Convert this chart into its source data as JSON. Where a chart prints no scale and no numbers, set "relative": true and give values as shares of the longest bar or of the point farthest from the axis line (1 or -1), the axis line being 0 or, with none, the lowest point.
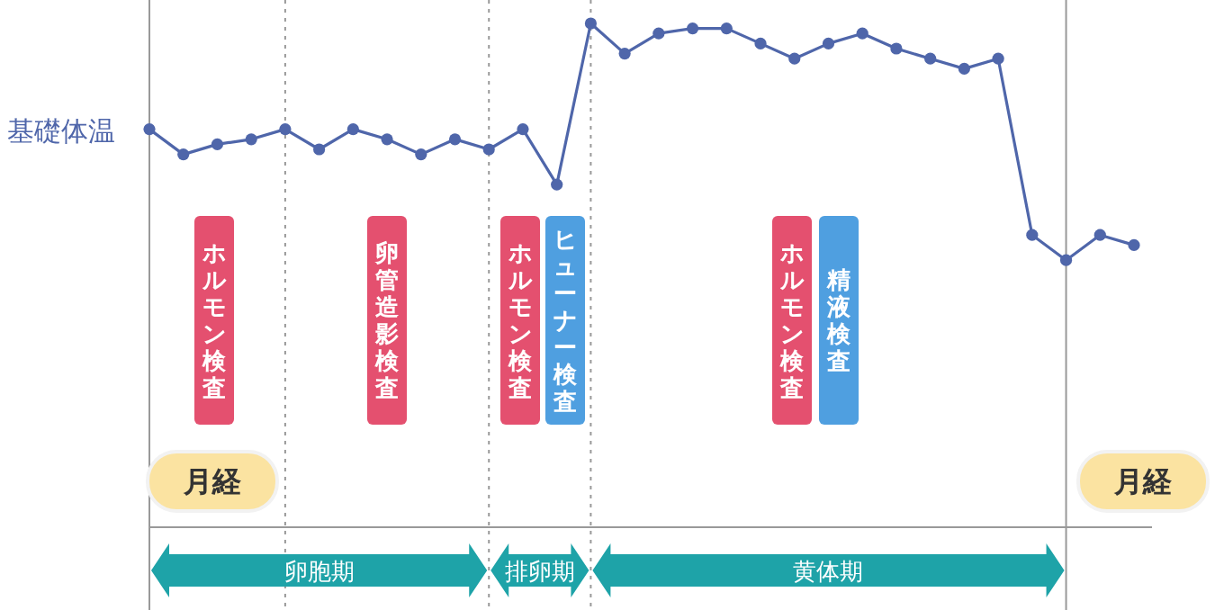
{
  "chart_data": {
    "type": "line",
    "relative": true,
    "ylabel": "基礎体温",
    "color": "#4f66aa",
    "marker": "circle",
    "grid": "x",
    "categories": [
      null,
      null,
      null,
      null,
      null,
      null,
      null,
      null,
      null,
      null,
      null,
      null,
      null,
      null,
      null,
      null,
      null,
      null,
      null,
      null,
      null,
      null,
      null,
      null,
      null,
      null,
      null,
      null,
      null,
      null
    ],
    "values": [
      0.79,
      0.74,
      0.76,
      0.77,
      0.79,
      0.75,
      0.79,
      0.77,
      0.74,
      0.77,
      0.75,
      0.79,
      0.68,
      1,
      0.94,
      0.98,
      0.99,
      0.99,
      0.96,
      0.93,
      0.96,
      0.98,
      0.95,
      0.93,
      0.91,
      0.93,
      0.58,
      0.53,
      0.58,
      0.56
    ],
    "annotations": [
      "ホルモン検査",
      "卵管造影検査",
      "ホルモン検査",
      "ヒューナー検査",
      "ホルモン検査",
      "精液検査",
      "月経",
      "月経",
      "卵胞期",
      "排卵期",
      "黄体期"
    ]
  }
}
